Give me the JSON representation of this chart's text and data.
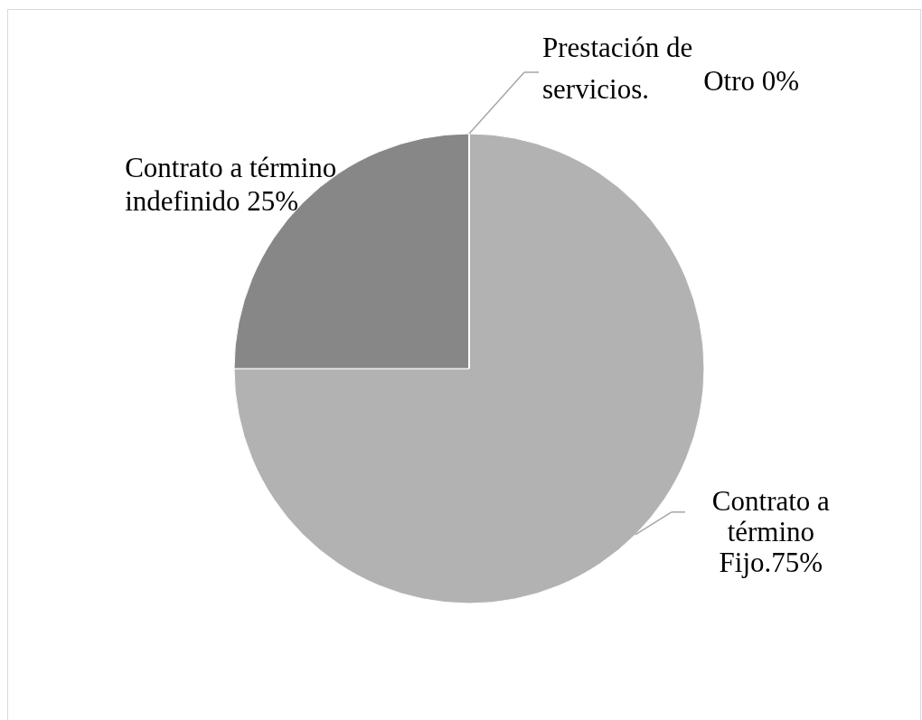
{
  "chart_data": {
    "type": "pie",
    "categories": [
      "Contrato a término Fijo.",
      "Contrato a término indefinido",
      "Prestación de servicios.",
      "Otro"
    ],
    "values": [
      75,
      25,
      0,
      0
    ],
    "colors": [
      "#b2b2b2",
      "#878787",
      "#5e5e5e",
      "#d9d9d9"
    ],
    "value_labels": [
      "75%",
      "25%",
      null,
      "0%"
    ]
  }
}
